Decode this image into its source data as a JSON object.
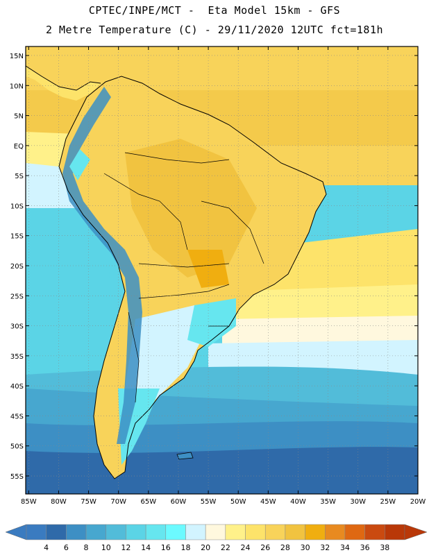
{
  "header": {
    "line1": "CPTEC/INPE/MCT -  Eta Model 15km - GFS",
    "line2": "2 Metre Temperature (C) - 29/11/2020 12UTC fct=181h"
  },
  "axes": {
    "lat_labels": [
      "15N",
      "10N",
      "5N",
      "EQ",
      "5S",
      "10S",
      "15S",
      "20S",
      "25S",
      "30S",
      "35S",
      "40S",
      "45S",
      "50S",
      "55S"
    ],
    "lat_values": [
      15,
      10,
      5,
      0,
      -5,
      -10,
      -15,
      -20,
      -25,
      -30,
      -35,
      -40,
      -45,
      -50,
      -55
    ],
    "lon_labels": [
      "85W",
      "80W",
      "75W",
      "70W",
      "65W",
      "60W",
      "55W",
      "50W",
      "45W",
      "40W",
      "35W",
      "30W",
      "25W",
      "20W"
    ],
    "lon_values": [
      -85,
      -80,
      -75,
      -70,
      -65,
      -60,
      -55,
      -50,
      -45,
      -40,
      -35,
      -30,
      -25,
      -20
    ],
    "lon_range": [
      -85.5,
      -20
    ],
    "lat_range": [
      -58,
      16.5
    ],
    "grid": "dotted"
  },
  "colorbar": {
    "labels": [
      "4",
      "6",
      "8",
      "10",
      "12",
      "14",
      "16",
      "18",
      "20",
      "22",
      "24",
      "26",
      "28",
      "30",
      "32",
      "34",
      "36",
      "38"
    ],
    "colors": [
      "#3a7bc0",
      "#2f6aa9",
      "#3d8fc4",
      "#47a7cf",
      "#52bcd9",
      "#5bd4e6",
      "#66e6ef",
      "#6cfaff",
      "#d2f4ff",
      "#fff8de",
      "#fff18a",
      "#fde36a",
      "#f8d35a",
      "#f1c340",
      "#f0ae10",
      "#e88a20",
      "#df6812",
      "#ca4a10",
      "#b93808"
    ]
  },
  "colors": {
    "ocean_south": "#2f6aa9",
    "ocean_mid": "#3d8fc4",
    "ocean_cold": "#47a7cf",
    "ocean_cool": "#5bd4e6",
    "ocean_warm": "#fde36a",
    "ocean_tropical": "#f8d35a",
    "land_hot": "#f1c340",
    "andes": "#66e6ef"
  }
}
